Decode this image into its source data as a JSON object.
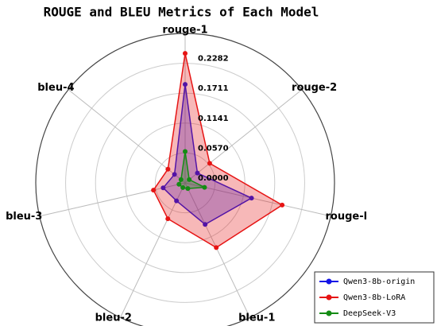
{
  "chart_data": {
    "type": "radar",
    "title": "ROUGE and BLEU Metrics of Each Model",
    "categories": [
      "rouge-1",
      "rouge-2",
      "rouge-l",
      "bleu-1",
      "bleu-2",
      "bleu-3",
      "bleu-4"
    ],
    "ylim": [
      0,
      0.2852
    ],
    "yticks": [
      {
        "value": 0,
        "label": "0.0000"
      },
      {
        "value": 0.057,
        "label": "0.0570"
      },
      0.1141,
      0.1711,
      0.2282
    ],
    "grid": true,
    "legend": "lower right",
    "series": [
      {
        "name": "Qwen3-8b-origin",
        "color": "#1414e6",
        "values": [
          0.188,
          0.03,
          0.13,
          0.088,
          0.038,
          0.043,
          0.026
        ]
      },
      {
        "name": "Qwen3-8b-LoRA",
        "color": "#e61414",
        "values": [
          0.247,
          0.06,
          0.19,
          0.137,
          0.076,
          0.062,
          0.042
        ]
      },
      {
        "name": "DeepSeek-V3",
        "color": "#148c14",
        "values": [
          0.06,
          0.01,
          0.038,
          0.012,
          0.01,
          0.012,
          0.01
        ]
      }
    ]
  }
}
